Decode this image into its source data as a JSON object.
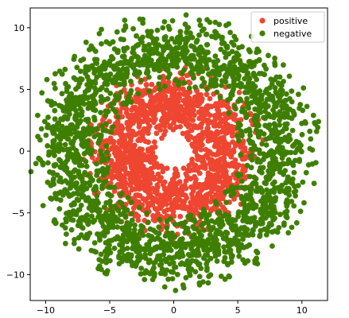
{
  "chart_data": {
    "type": "scatter",
    "title": "",
    "xlabel": "",
    "ylabel": "",
    "xlim": [
      -11.2,
      12.0
    ],
    "ylim": [
      -12.1,
      11.6
    ],
    "x_ticks": [
      -10,
      -5,
      0,
      5,
      10
    ],
    "y_ticks": [
      -10,
      -5,
      0,
      5,
      10
    ],
    "x_tick_labels": [
      "−10",
      "−5",
      "0",
      "5",
      "10"
    ],
    "y_tick_labels": [
      "−10",
      "−5",
      "0",
      "5",
      "10"
    ],
    "grid": false,
    "legend": {
      "placement": "top-right"
    },
    "series": [
      {
        "name": "positive",
        "color": "#ee4630",
        "ring_radius": [
          1.8,
          6.8
        ],
        "approx_points": 1500
      },
      {
        "name": "negative",
        "color": "#3f7f00",
        "ring_radius": [
          5.5,
          11.0
        ],
        "approx_points": 2200
      }
    ],
    "draw_order": [
      "positive",
      "negative"
    ],
    "legend_order": [
      "positive",
      "negative"
    ],
    "outliers": {
      "negative": [
        [
          -9.9,
          5.8
        ],
        [
          11.3,
          2.4
        ],
        [
          -0.7,
          -11.0
        ],
        [
          -10.2,
          -1.1
        ]
      ]
    }
  }
}
